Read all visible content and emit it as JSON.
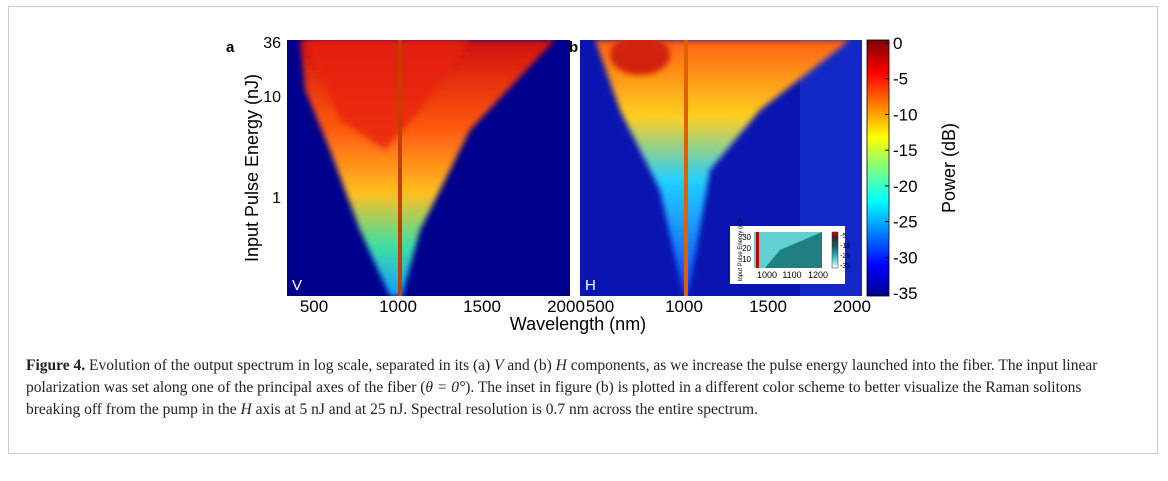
{
  "figure": {
    "panels": [
      {
        "label": "a",
        "corner": "V",
        "yticks": [
          "36",
          "10",
          "1"
        ],
        "xticks": [
          "500",
          "1000",
          "1500",
          "2000"
        ]
      },
      {
        "label": "b",
        "corner": "H",
        "xticks": [
          "500",
          "1000",
          "1500",
          "2000"
        ]
      }
    ],
    "y_label": "Input Pulse Energy (nJ)",
    "x_label": "Wavelength (nm)",
    "colorbar": {
      "label": "Power (dB)",
      "ticks": [
        "0",
        "-5",
        "-10",
        "-15",
        "-20",
        "-25",
        "-30",
        "-35"
      ]
    },
    "inset": {
      "y_label": "Input Pulse Energy (nJ)",
      "yticks": [
        "30",
        "20",
        "10"
      ],
      "xticks": [
        "1000",
        "1100",
        "1200"
      ],
      "cticks": [
        "-5",
        "-15",
        "-25",
        "-35"
      ]
    }
  },
  "caption": {
    "label": "Figure 4.",
    "parts": [
      " Evolution of the output spectrum in log scale, separated in its (a) ",
      "V",
      " and (b) ",
      "H",
      " components, as we increase the pulse energy launched into the fiber. The input linear polarization was set along one of the principal axes of the fiber (",
      "θ = 0°",
      "). The inset in figure (b) is plotted in a different color scheme to better visualize the Raman solitons breaking off from the pump in the ",
      "H",
      " axis at 5 nJ and at 25 nJ. Spectral resolution is 0.7 nm across the entire spectrum."
    ]
  }
}
